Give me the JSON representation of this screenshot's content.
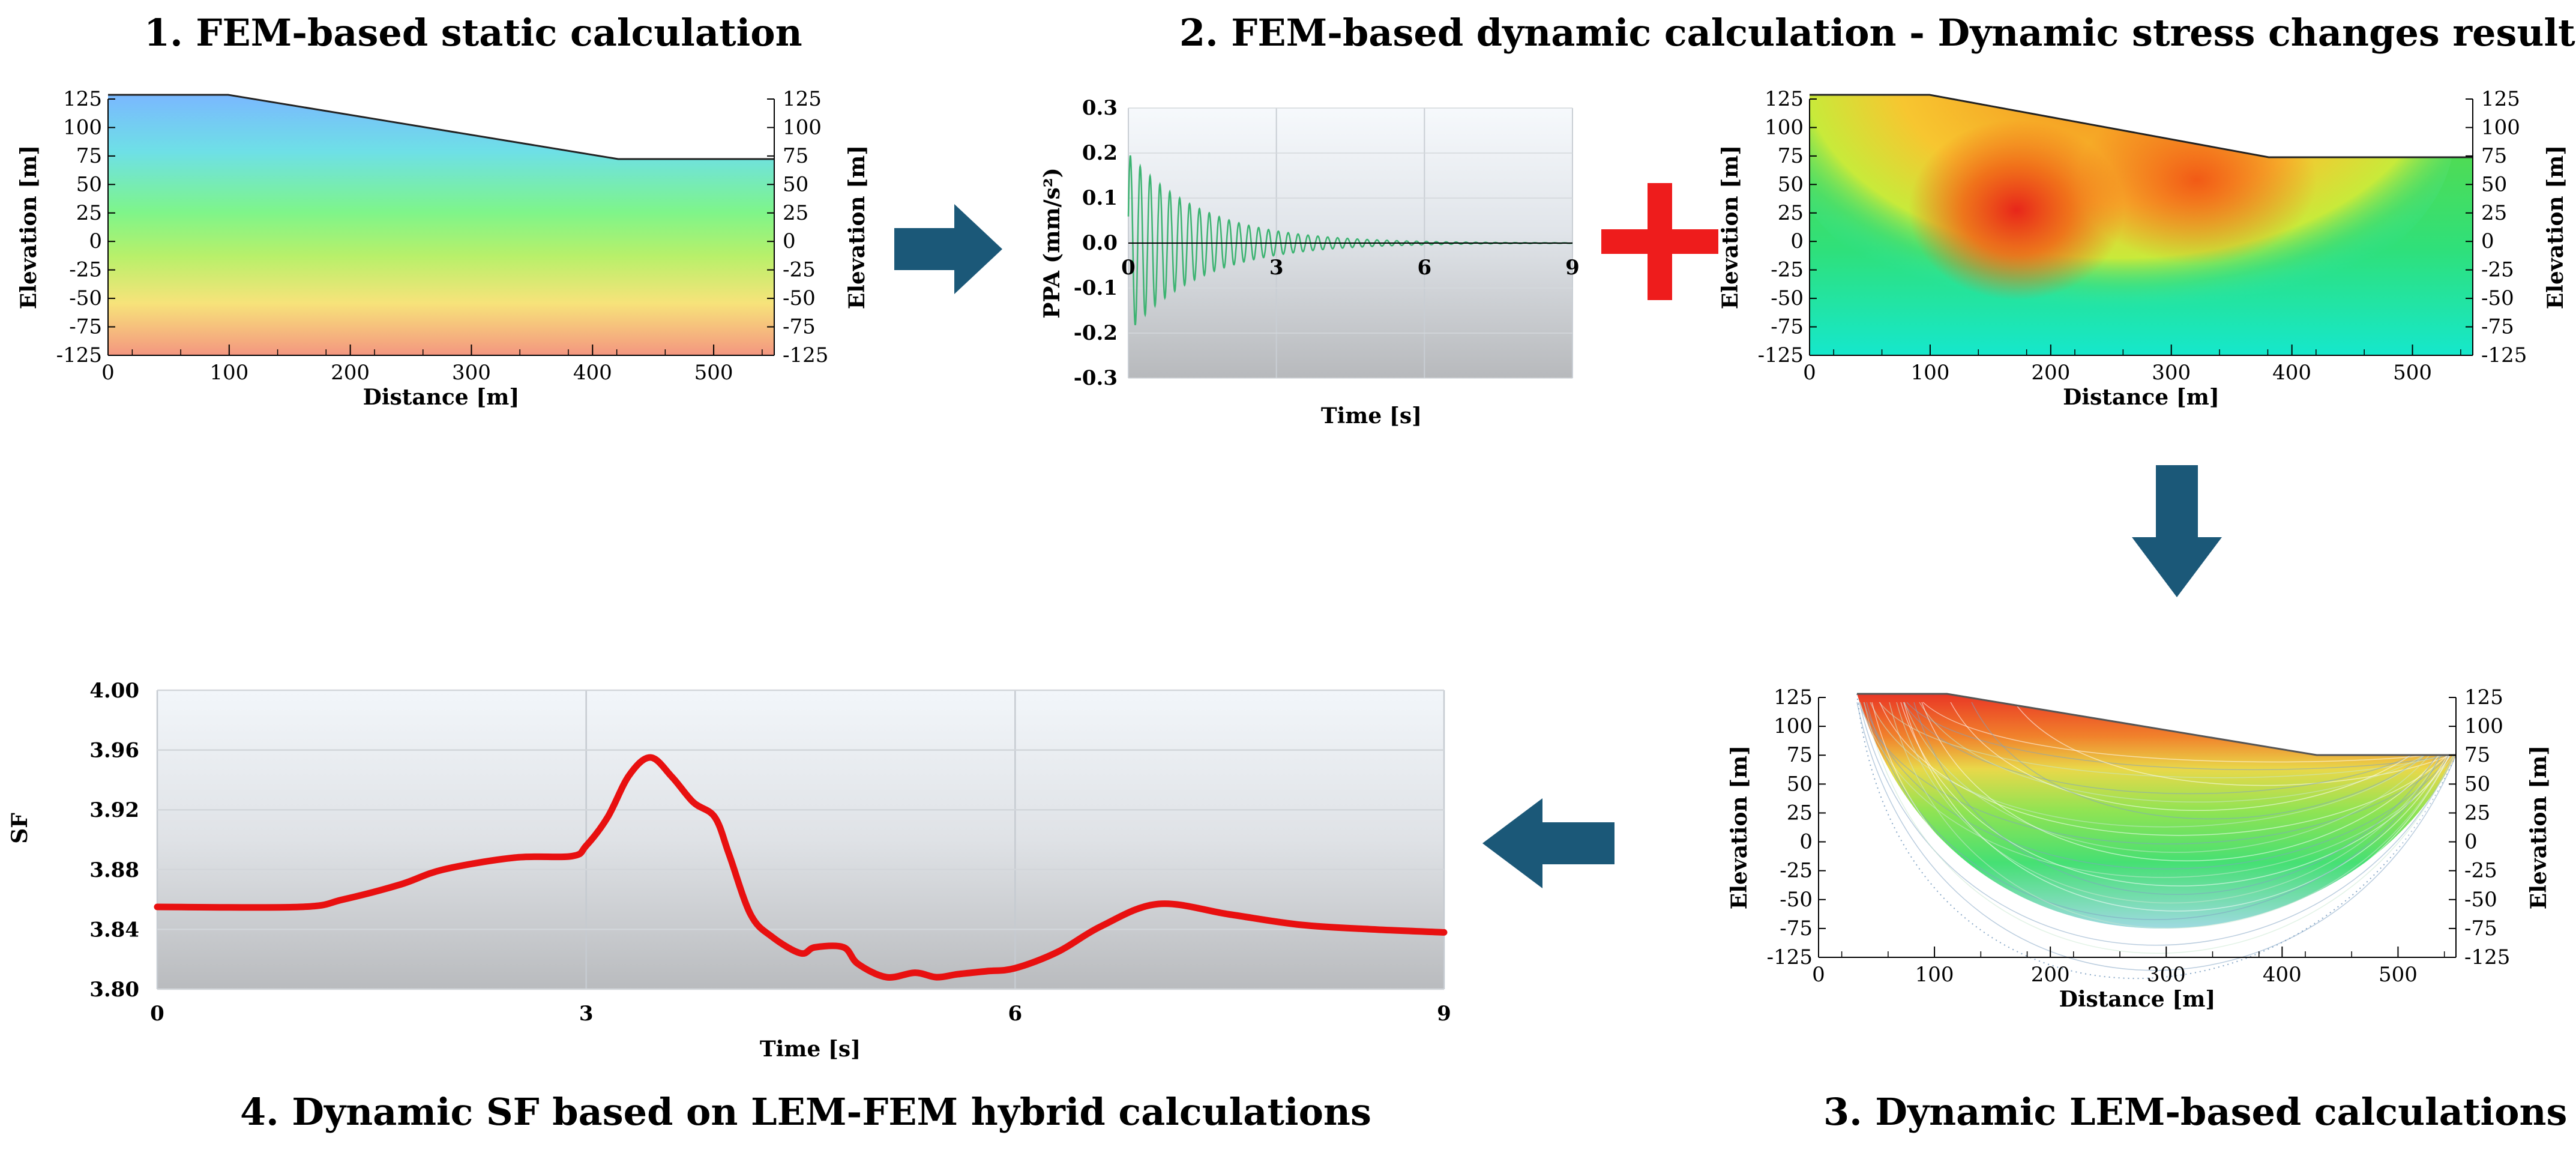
{
  "titles": {
    "step1": "1. FEM-based static calculation",
    "step2": "2. FEM-based dynamic calculation - Dynamic stress changes result",
    "step3": "3. Dynamic LEM-based calculations",
    "step4": "4. Dynamic SF based on LEM-FEM hybrid calculations"
  },
  "colors": {
    "arrow": "#1b5878",
    "plus": "#ee1c1c",
    "sf_line": "#e81010",
    "ppa_line": "#3cb371"
  },
  "section_axes": {
    "elevation_ticks": [
      "125",
      "100",
      "75",
      "50",
      "25",
      "0",
      "-25",
      "-50",
      "-75",
      "-125"
    ],
    "distance_ticks": [
      "0",
      "100",
      "200",
      "300",
      "400",
      "500"
    ],
    "ylabel": "Elevation [m]",
    "xlabel": "Distance [m]"
  },
  "chart_data": [
    {
      "name": "static-section",
      "type": "heatmap",
      "title": "1. FEM-based static calculation",
      "xlabel": "Distance [m]",
      "ylabel": "Elevation [m]",
      "xlim": [
        0,
        550
      ],
      "ylim": [
        -125,
        125
      ],
      "profile": {
        "x": [
          0,
          95,
          410,
          550
        ],
        "y": [
          125,
          125,
          80,
          80
        ]
      }
    },
    {
      "name": "ppa-time-history",
      "type": "line",
      "title": "",
      "xlabel": "Time [s]",
      "ylabel": "PPA (mm/s²)",
      "xlim": [
        0,
        9
      ],
      "ylim": [
        -0.3,
        0.3
      ],
      "x_ticks": [
        "0",
        "3",
        "6",
        "9"
      ],
      "y_ticks": [
        "0.3",
        "0.2",
        "0.1",
        "0.0",
        "-0.1",
        "-0.2",
        "-0.3"
      ],
      "signal": {
        "initial_amplitude": 0.2,
        "decay_time_s": 1.5,
        "period_s": 0.1
      }
    },
    {
      "name": "dynamic-stress-section",
      "type": "heatmap",
      "title": "Dynamic stress changes result",
      "xlabel": "Distance [m]",
      "ylabel": "Elevation [m]",
      "xlim": [
        0,
        550
      ],
      "ylim": [
        -125,
        125
      ]
    },
    {
      "name": "lem-slip-surfaces",
      "type": "scatter",
      "title": "3. Dynamic LEM-based calculations",
      "xlabel": "Distance [m]",
      "ylabel": "Elevation [m]",
      "xlim": [
        0,
        550
      ],
      "ylim": [
        -125,
        125
      ],
      "slip_entry_x": 30,
      "slip_exit_x": 520,
      "deepest_elevation": -100
    },
    {
      "name": "dynamic-sf",
      "type": "line",
      "title": "4. Dynamic SF based on LEM-FEM hybrid calculations",
      "xlabel": "Time [s]",
      "ylabel": "SF",
      "xlim": [
        0,
        9
      ],
      "ylim": [
        3.8,
        4.0
      ],
      "x_ticks": [
        "0",
        "3",
        "6",
        "9"
      ],
      "y_ticks": [
        "4.00",
        "3.96",
        "3.92",
        "3.88",
        "3.84",
        "3.80"
      ],
      "x": [
        0,
        1.0,
        1.3,
        1.7,
        2.0,
        2.5,
        2.9,
        3.0,
        3.15,
        3.3,
        3.45,
        3.6,
        3.75,
        3.9,
        4.0,
        4.15,
        4.3,
        4.5,
        4.6,
        4.8,
        4.9,
        5.1,
        5.3,
        5.45,
        5.6,
        5.8,
        6.0,
        6.3,
        6.6,
        7.0,
        7.5,
        8.0,
        8.5,
        9.0
      ],
      "y": [
        3.855,
        3.855,
        3.86,
        3.87,
        3.88,
        3.888,
        3.889,
        3.896,
        3.915,
        3.943,
        3.955,
        3.942,
        3.925,
        3.915,
        3.89,
        3.85,
        3.835,
        3.824,
        3.828,
        3.828,
        3.817,
        3.808,
        3.811,
        3.808,
        3.81,
        3.812,
        3.814,
        3.825,
        3.842,
        3.857,
        3.85,
        3.843,
        3.84,
        3.838
      ]
    }
  ]
}
